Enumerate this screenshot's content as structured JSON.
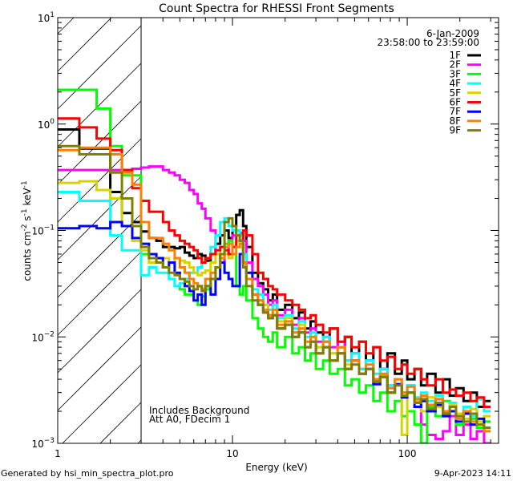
{
  "chart_data": {
    "type": "line",
    "title": "Count Spectra for RHESSI Front Segments",
    "xlabel": "Energy (keV)",
    "ylabel_parts": [
      "counts cm",
      "-2",
      " s",
      "-1",
      " keV",
      "-1"
    ],
    "xscale": "log",
    "yscale": "log",
    "xlim": [
      1,
      333
    ],
    "ylim": [
      0.001,
      10
    ],
    "x_ticks": [
      1,
      10,
      100
    ],
    "x_tick_labels": [
      "1",
      "10",
      "100"
    ],
    "y_tick_exponents": [
      -3,
      -2,
      -1,
      0,
      1
    ],
    "y_tick_base": "10",
    "excluded_region_keV": [
      1,
      3
    ],
    "legend_position": "top-right",
    "date": "6-Jan-2009",
    "time_range": "23:58:00 to 23:59:00",
    "annotations": [
      "Includes Background",
      "Att A0, FDecim 1"
    ],
    "footer_left": "Generated by hsi_min_spectra_plot.pro",
    "footer_right": "9-Apr-2023 14:11",
    "energy_edges": [
      1,
      1.33,
      1.67,
      2,
      2.33,
      2.67,
      3,
      3.33,
      3.67,
      4,
      4.33,
      4.67,
      5,
      5.33,
      5.67,
      6,
      6.33,
      6.67,
      7,
      7.5,
      8,
      8.5,
      9,
      9.5,
      10,
      10.5,
      11,
      11.5,
      12,
      13,
      14,
      15,
      16,
      17,
      18,
      20,
      22,
      24,
      26,
      28,
      30,
      33,
      36,
      40,
      44,
      48,
      53,
      58,
      64,
      70,
      77,
      85,
      93,
      100,
      110,
      120,
      130,
      145,
      160,
      175,
      190,
      210,
      230,
      250,
      275,
      300
    ],
    "series": [
      {
        "name": "1F",
        "color": "#000000",
        "values": [
          0.89,
          0.59,
          0.59,
          0.23,
          0.146,
          0.12,
          0.098,
          0.085,
          0.08,
          0.07,
          0.07,
          0.068,
          0.07,
          0.062,
          0.058,
          0.055,
          0.06,
          0.058,
          0.052,
          0.06,
          0.075,
          0.09,
          0.1,
          0.085,
          0.11,
          0.14,
          0.155,
          0.11,
          0.07,
          0.04,
          0.032,
          0.028,
          0.022,
          0.025,
          0.018,
          0.02,
          0.015,
          0.017,
          0.012,
          0.014,
          0.011,
          0.009,
          0.012,
          0.008,
          0.01,
          0.007,
          0.009,
          0.006,
          0.008,
          0.005,
          0.007,
          0.0045,
          0.006,
          0.004,
          0.005,
          0.0035,
          0.0045,
          0.003,
          0.004,
          0.0028,
          0.0033,
          0.0025,
          0.003,
          0.0022,
          0.0025
        ]
      },
      {
        "name": "2F",
        "color": "#ff00ff",
        "values": [
          0.37,
          0.37,
          0.37,
          0.37,
          0.37,
          0.38,
          0.39,
          0.4,
          0.4,
          0.37,
          0.35,
          0.33,
          0.3,
          0.28,
          0.24,
          0.22,
          0.18,
          0.16,
          0.13,
          0.1,
          0.06,
          0.05,
          0.06,
          0.08,
          0.09,
          0.1,
          0.095,
          0.08,
          0.05,
          0.035,
          0.03,
          0.025,
          0.02,
          0.022,
          0.016,
          0.018,
          0.013,
          0.015,
          0.011,
          0.012,
          0.009,
          0.01,
          0.008,
          0.009,
          0.006,
          0.007,
          0.005,
          0.006,
          0.004,
          0.005,
          0.0035,
          0.004,
          0.003,
          0.0035,
          0.0025,
          0.0015,
          0.0012,
          0.0011,
          0.0013,
          0.0018,
          0.0012,
          0.0015,
          0.0011,
          0.0013,
          0.001
        ]
      },
      {
        "name": "3F",
        "color": "#00ff00",
        "values": [
          2.1,
          2.1,
          1.4,
          0.62,
          0.33,
          0.33,
          0.06,
          0.05,
          0.05,
          0.045,
          0.035,
          0.03,
          0.028,
          0.025,
          0.025,
          0.022,
          0.02,
          0.024,
          0.028,
          0.035,
          0.045,
          0.06,
          0.075,
          0.08,
          0.06,
          0.03,
          0.025,
          0.03,
          0.022,
          0.015,
          0.012,
          0.01,
          0.009,
          0.011,
          0.008,
          0.01,
          0.007,
          0.008,
          0.006,
          0.007,
          0.005,
          0.006,
          0.0045,
          0.005,
          0.0035,
          0.004,
          0.003,
          0.0035,
          0.0025,
          0.003,
          0.002,
          0.0025,
          0.0018,
          0.002,
          0.0015,
          0.001,
          0.0022,
          0.0018,
          0.0025,
          0.002,
          0.0015,
          0.002,
          0.0017,
          0.0014,
          0.0016
        ]
      },
      {
        "name": "4F",
        "color": "#00ffff",
        "values": [
          0.23,
          0.19,
          0.19,
          0.09,
          0.065,
          0.065,
          0.038,
          0.045,
          0.04,
          0.04,
          0.035,
          0.03,
          0.032,
          0.035,
          0.04,
          0.04,
          0.045,
          0.05,
          0.055,
          0.07,
          0.09,
          0.12,
          0.13,
          0.11,
          0.1,
          0.1,
          0.09,
          0.06,
          0.04,
          0.028,
          0.025,
          0.02,
          0.018,
          0.02,
          0.015,
          0.016,
          0.012,
          0.014,
          0.01,
          0.011,
          0.008,
          0.01,
          0.007,
          0.008,
          0.006,
          0.007,
          0.005,
          0.006,
          0.0045,
          0.005,
          0.0035,
          0.004,
          0.003,
          0.0035,
          0.0027,
          0.003,
          0.0025,
          0.0028,
          0.002,
          0.0024,
          0.0019,
          0.0022,
          0.0018,
          0.0026,
          0.002
        ]
      },
      {
        "name": "5F",
        "color": "#d4d400",
        "values": [
          0.28,
          0.29,
          0.24,
          0.2,
          0.11,
          0.08,
          0.065,
          0.05,
          0.055,
          0.055,
          0.05,
          0.055,
          0.052,
          0.05,
          0.045,
          0.04,
          0.038,
          0.04,
          0.042,
          0.05,
          0.06,
          0.07,
          0.06,
          0.055,
          0.07,
          0.08,
          0.07,
          0.05,
          0.035,
          0.025,
          0.022,
          0.02,
          0.016,
          0.018,
          0.014,
          0.015,
          0.011,
          0.013,
          0.009,
          0.01,
          0.008,
          0.009,
          0.007,
          0.008,
          0.0055,
          0.006,
          0.0045,
          0.005,
          0.0038,
          0.0043,
          0.003,
          0.0036,
          0.0012,
          0.003,
          0.0025,
          0.002,
          0.0027,
          0.0022,
          0.0018,
          0.0023,
          0.0019,
          0.0017,
          0.0021,
          0.0016,
          0.0018
        ]
      },
      {
        "name": "6F",
        "color": "#ff0000",
        "values": [
          1.13,
          0.93,
          0.73,
          0.57,
          0.37,
          0.25,
          0.19,
          0.15,
          0.15,
          0.12,
          0.1,
          0.09,
          0.08,
          0.075,
          0.07,
          0.065,
          0.055,
          0.05,
          0.055,
          0.06,
          0.065,
          0.07,
          0.065,
          0.06,
          0.07,
          0.09,
          0.08,
          0.1,
          0.09,
          0.06,
          0.04,
          0.035,
          0.03,
          0.028,
          0.025,
          0.022,
          0.02,
          0.018,
          0.015,
          0.016,
          0.013,
          0.011,
          0.012,
          0.009,
          0.01,
          0.008,
          0.009,
          0.007,
          0.008,
          0.006,
          0.0065,
          0.005,
          0.0055,
          0.0045,
          0.005,
          0.004,
          0.0035,
          0.004,
          0.003,
          0.0032,
          0.0028,
          0.003,
          0.0025,
          0.0027,
          0.0022
        ]
      },
      {
        "name": "7F",
        "color": "#0000ff",
        "values": [
          0.105,
          0.11,
          0.105,
          0.12,
          0.11,
          0.085,
          0.075,
          0.06,
          0.055,
          0.045,
          0.05,
          0.04,
          0.035,
          0.03,
          0.027,
          0.022,
          0.025,
          0.02,
          0.03,
          0.025,
          0.035,
          0.05,
          0.04,
          0.035,
          0.03,
          0.03,
          0.06,
          0.05,
          0.04,
          0.025,
          0.02,
          0.017,
          0.015,
          0.016,
          0.012,
          0.013,
          0.01,
          0.011,
          0.008,
          0.009,
          0.007,
          0.008,
          0.006,
          0.007,
          0.005,
          0.006,
          0.0045,
          0.005,
          0.0036,
          0.0042,
          0.003,
          0.0036,
          0.0027,
          0.003,
          0.0022,
          0.0025,
          0.002,
          0.0023,
          0.0018,
          0.002,
          0.0016,
          0.0019,
          0.0015,
          0.0017,
          0.0014
        ]
      },
      {
        "name": "8F",
        "color": "#ff8000",
        "values": [
          0.57,
          0.6,
          0.6,
          0.52,
          0.35,
          0.27,
          0.12,
          0.085,
          0.085,
          0.075,
          0.065,
          0.055,
          0.045,
          0.04,
          0.035,
          0.032,
          0.03,
          0.028,
          0.035,
          0.04,
          0.045,
          0.055,
          0.07,
          0.075,
          0.06,
          0.07,
          0.075,
          0.05,
          0.035,
          0.025,
          0.022,
          0.018,
          0.016,
          0.018,
          0.013,
          0.014,
          0.011,
          0.012,
          0.009,
          0.01,
          0.007,
          0.009,
          0.006,
          0.008,
          0.005,
          0.006,
          0.0045,
          0.0055,
          0.004,
          0.0045,
          0.0033,
          0.004,
          0.003,
          0.0034,
          0.0026,
          0.0028,
          0.0023,
          0.0026,
          0.002,
          0.0022,
          0.0017,
          0.002,
          0.0016,
          0.0015,
          0.0013
        ]
      },
      {
        "name": "9F",
        "color": "#808000",
        "values": [
          0.62,
          0.52,
          0.52,
          0.35,
          0.2,
          0.11,
          0.07,
          0.055,
          0.05,
          0.045,
          0.04,
          0.038,
          0.035,
          0.033,
          0.03,
          0.028,
          0.03,
          0.027,
          0.03,
          0.035,
          0.045,
          0.06,
          0.12,
          0.13,
          0.11,
          0.09,
          0.08,
          0.045,
          0.03,
          0.022,
          0.02,
          0.017,
          0.015,
          0.016,
          0.012,
          0.013,
          0.01,
          0.011,
          0.008,
          0.009,
          0.007,
          0.008,
          0.006,
          0.007,
          0.005,
          0.0055,
          0.0045,
          0.005,
          0.0038,
          0.0042,
          0.003,
          0.0035,
          0.0028,
          0.003,
          0.0024,
          0.0026,
          0.0021,
          0.0024,
          0.0019,
          0.0022,
          0.0018,
          0.0016,
          0.0019,
          0.0015,
          0.0014
        ]
      }
    ]
  }
}
